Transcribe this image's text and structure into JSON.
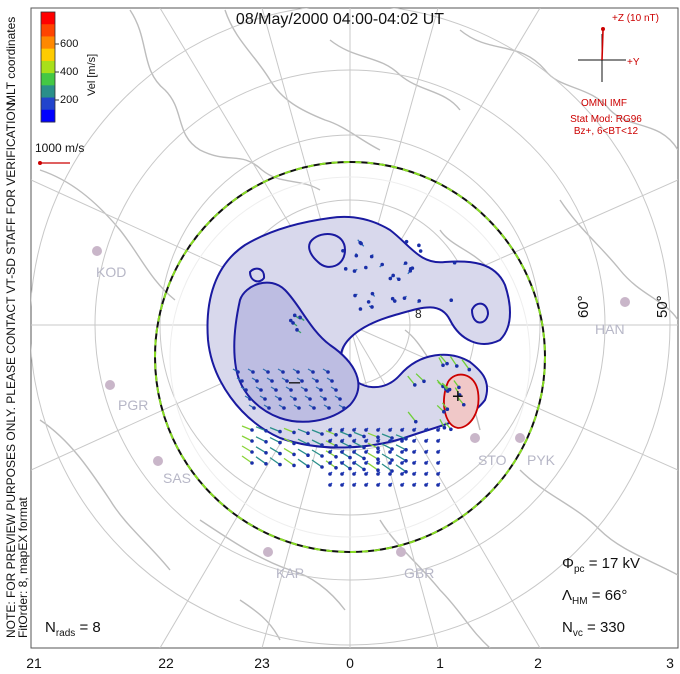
{
  "title": "08/May/2000 04:00-04:02 UT",
  "side_note": {
    "line1": "NOTE: FOR PREVIEW PURPOSES ONLY. PLEASE CONTACT VT-SD STAFF FOR VERIFICATION.",
    "line2": "FitOrder: 8, mapEX format"
  },
  "coordinate_label": "MLT coordinates",
  "velocity_scale": {
    "unit_label": "Vel [m/s]",
    "ticks": [
      "600",
      "400",
      "200"
    ],
    "colors": [
      "#ff0000",
      "#ff4400",
      "#ff8800",
      "#ffcc00",
      "#a8e01a",
      "#44c844",
      "#2a8f8a",
      "#2244cc",
      "#0000ff"
    ],
    "reference_vector_label": "1000 m/s"
  },
  "imf": {
    "z_label": "+Z (10 nT)",
    "y_label": "+Y",
    "source_label": "OMNI IMF",
    "model_line1": "Stat Mod: RG96",
    "model_line2": "Bz+, 6<BT<12",
    "color": "#cc0000"
  },
  "latitude_labels": [
    "60°",
    "50°"
  ],
  "stations": [
    {
      "code": "KOD"
    },
    {
      "code": "HAN"
    },
    {
      "code": "PGR"
    },
    {
      "code": "SAS"
    },
    {
      "code": "STO"
    },
    {
      "code": "PYK"
    },
    {
      "code": "KAP"
    },
    {
      "code": "GBR"
    }
  ],
  "potential_markers": {
    "negative": "–",
    "positive": "+"
  },
  "stats": {
    "phi_symbol": "Φ",
    "phi_sub": "pc",
    "phi_value": " = 17 kV",
    "lambda_symbol": "Λ",
    "lambda_sub": "HM",
    "lambda_value": " = 66°",
    "nvc_symbol": "N",
    "nvc_sub": "vc",
    "nvc_value": " = 330",
    "nrads_symbol": "N",
    "nrads_sub": "rads",
    "nrads_value": " = 8"
  },
  "mlt_axis": [
    "21",
    "22",
    "23",
    "0",
    "1",
    "2",
    "3"
  ],
  "colors": {
    "convection_fill": "#c9c9e9",
    "positive_cell_fill": "#f0c8c8",
    "contour": "#1a1aa0",
    "hmb_dash_green": "#88dd22",
    "coastline": "#bdbdbd",
    "grid": "#c8c8c8"
  }
}
